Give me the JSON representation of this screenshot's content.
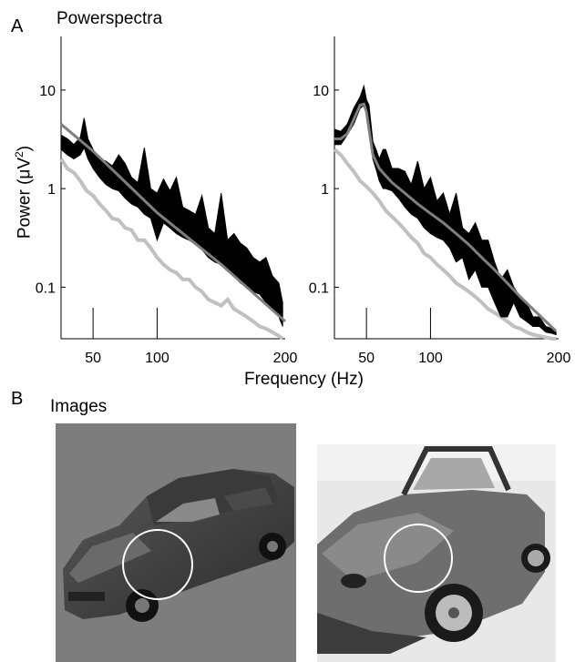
{
  "panel_a": {
    "letter": "A",
    "title": "Powerspectra"
  },
  "panel_b": {
    "letter": "B",
    "title": "Images"
  },
  "shared": {
    "xlabel": "Frequency (Hz)",
    "ylabel_main": "Power (",
    "ylabel_mu": "μ",
    "ylabel_unit": "V",
    "ylabel_sup": "2",
    "ylabel_close": ")"
  },
  "colors": {
    "band": "#000000",
    "fit": "#7f7f7f",
    "baseline": "#c0c0c0",
    "axis": "#000000"
  },
  "chart_data": [
    {
      "type": "area",
      "xticks": [
        50,
        100,
        200
      ],
      "yticks": [
        {
          "v": 0.1,
          "label": "0.1"
        },
        {
          "v": 1,
          "label": "1"
        },
        {
          "v": 10,
          "label": "10"
        }
      ],
      "xlim": [
        25,
        200
      ],
      "ylim": [
        0.03,
        35
      ],
      "ylog": true,
      "series": [
        {
          "x": [
            25,
            30,
            35,
            40,
            43,
            46,
            50,
            55,
            60,
            65,
            70,
            75,
            80,
            85,
            90,
            95,
            100,
            105,
            110,
            115,
            120,
            125,
            130,
            135,
            140,
            145,
            150,
            155,
            160,
            165,
            170,
            175,
            180,
            185,
            190,
            195,
            198
          ],
          "lower": [
            2.5,
            2.2,
            2.0,
            2.2,
            2.6,
            2.0,
            1.6,
            1.3,
            1.1,
            1.0,
            0.95,
            0.8,
            0.7,
            0.65,
            0.55,
            0.5,
            0.3,
            0.45,
            0.4,
            0.35,
            0.32,
            0.3,
            0.27,
            0.24,
            0.2,
            0.18,
            0.17,
            0.15,
            0.13,
            0.11,
            0.1,
            0.09,
            0.085,
            0.07,
            0.06,
            0.05,
            0.04
          ],
          "upper": [
            3.5,
            3.2,
            2.8,
            3.3,
            5.2,
            3.2,
            2.5,
            2.0,
            1.9,
            1.7,
            2.2,
            1.8,
            1.3,
            1.15,
            2.6,
            1.0,
            0.9,
            1.25,
            0.95,
            1.3,
            0.65,
            0.6,
            0.55,
            0.85,
            0.4,
            0.35,
            0.9,
            0.3,
            0.35,
            0.28,
            0.25,
            0.2,
            0.18,
            0.2,
            0.13,
            0.11,
            0.07
          ]
        },
        {
          "name": "",
          "x": [
            25,
            50,
            100,
            150,
            200
          ],
          "y": [
            4.5,
            2.4,
            0.57,
            0.17,
            0.045
          ]
        },
        {
          "name": "",
          "x": [
            25,
            30,
            35,
            40,
            45,
            50,
            55,
            60,
            65,
            70,
            75,
            80,
            85,
            90,
            95,
            100,
            105,
            110,
            115,
            120,
            125,
            130,
            135,
            140,
            145,
            150,
            155,
            160,
            165,
            170,
            175,
            180,
            185,
            190,
            195,
            198
          ],
          "y": [
            2.0,
            1.6,
            1.45,
            1.2,
            0.95,
            0.85,
            0.7,
            0.6,
            0.5,
            0.48,
            0.4,
            0.38,
            0.3,
            0.3,
            0.25,
            0.2,
            0.17,
            0.15,
            0.14,
            0.12,
            0.12,
            0.1,
            0.09,
            0.075,
            0.07,
            0.065,
            0.075,
            0.06,
            0.055,
            0.05,
            0.045,
            0.04,
            0.038,
            0.035,
            0.032,
            0.03
          ]
        }
      ]
    },
    {
      "type": "area",
      "xticks": [
        50,
        100,
        200
      ],
      "yticks": [
        {
          "v": 0.1,
          "label": "0.1"
        },
        {
          "v": 1,
          "label": "1"
        },
        {
          "v": 10,
          "label": "10"
        }
      ],
      "xlim": [
        25,
        200
      ],
      "ylim": [
        0.03,
        35
      ],
      "ylog": true,
      "series": [
        {
          "x": [
            25,
            30,
            35,
            40,
            45,
            48,
            50,
            52,
            55,
            58,
            60,
            63,
            65,
            70,
            75,
            80,
            85,
            90,
            95,
            100,
            105,
            110,
            115,
            120,
            125,
            130,
            135,
            140,
            145,
            150,
            155,
            160,
            165,
            170,
            175,
            180,
            185,
            190,
            195,
            198
          ],
          "lower": [
            2.8,
            2.8,
            3.5,
            4.5,
            6.5,
            7.0,
            6.0,
            4.0,
            2.0,
            1.5,
            1.2,
            1.0,
            1.0,
            0.95,
            0.8,
            0.65,
            0.55,
            0.5,
            0.4,
            0.35,
            0.32,
            0.3,
            0.25,
            0.18,
            0.2,
            0.12,
            0.15,
            0.1,
            0.1,
            0.07,
            0.05,
            0.05,
            0.07,
            0.05,
            0.045,
            0.04,
            0.04,
            0.035,
            0.034,
            0.033
          ],
          "upper": [
            4.0,
            3.8,
            4.5,
            6.5,
            8.5,
            11.0,
            8.0,
            7.0,
            3.0,
            2.4,
            2.0,
            2.5,
            2.5,
            1.6,
            1.6,
            1.5,
            1.1,
            1.9,
            1.0,
            1.3,
            0.75,
            0.9,
            0.55,
            0.9,
            0.4,
            0.35,
            0.45,
            0.3,
            0.3,
            0.18,
            0.12,
            0.15,
            0.1,
            0.08,
            0.07,
            0.05,
            0.05,
            0.04,
            0.038,
            0.035
          ]
        },
        {
          "name": "",
          "x": [
            25,
            30,
            35,
            40,
            45,
            48,
            50,
            52,
            55,
            60,
            65,
            70,
            80,
            90,
            100,
            110,
            120,
            130,
            140,
            150,
            160,
            170,
            180,
            190,
            198
          ],
          "y": [
            3.2,
            3.2,
            3.6,
            5.0,
            7.0,
            7.2,
            6.0,
            4.0,
            2.2,
            1.6,
            1.35,
            1.15,
            0.9,
            0.7,
            0.56,
            0.45,
            0.35,
            0.27,
            0.2,
            0.15,
            0.11,
            0.08,
            0.06,
            0.045,
            0.036
          ]
        },
        {
          "name": "",
          "x": [
            25,
            30,
            35,
            40,
            45,
            50,
            55,
            60,
            65,
            70,
            75,
            80,
            85,
            90,
            95,
            100,
            105,
            110,
            115,
            120,
            125,
            130,
            135,
            140,
            145,
            150,
            155,
            160,
            165,
            170,
            175,
            180,
            185,
            190,
            195,
            198
          ],
          "y": [
            2.5,
            2.2,
            1.8,
            1.5,
            1.2,
            1.05,
            0.9,
            0.75,
            0.6,
            0.52,
            0.45,
            0.38,
            0.32,
            0.28,
            0.22,
            0.2,
            0.17,
            0.15,
            0.13,
            0.11,
            0.1,
            0.09,
            0.08,
            0.07,
            0.06,
            0.055,
            0.05,
            0.045,
            0.04,
            0.038,
            0.035,
            0.033,
            0.032,
            0.031,
            0.03,
            0.03
          ]
        }
      ]
    }
  ]
}
